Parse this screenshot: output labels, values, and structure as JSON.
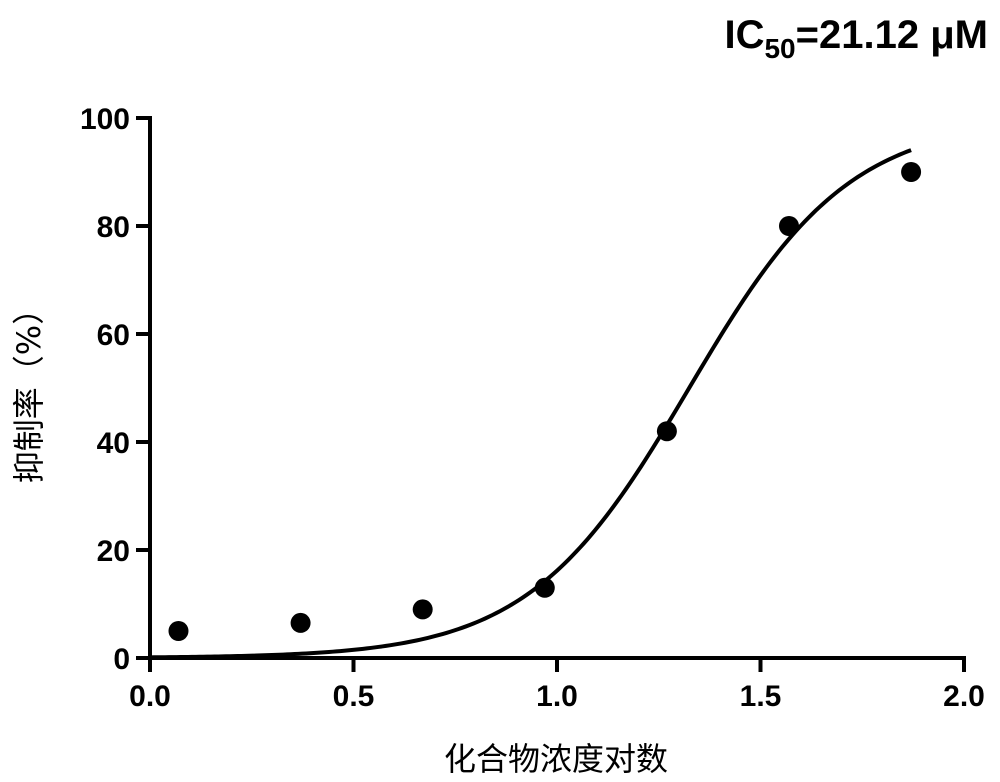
{
  "chart_data": {
    "type": "scatter",
    "title": {
      "prefix": "IC",
      "subscript": "50",
      "suffix": "=21.12 μM"
    },
    "xlabel": "化合物浓度对数",
    "ylabel": "抑制率（%）",
    "xlim": [
      0.0,
      2.0
    ],
    "ylim": [
      0,
      100
    ],
    "xticks": [
      0.0,
      0.5,
      1.0,
      1.5,
      2.0
    ],
    "xtick_labels": [
      "0.0",
      "0.5",
      "1.0",
      "1.5",
      "2.0"
    ],
    "yticks": [
      0,
      20,
      40,
      60,
      80,
      100
    ],
    "ytick_labels": [
      "0",
      "20",
      "40",
      "60",
      "80",
      "100"
    ],
    "grid": false,
    "points": {
      "x": [
        0.07,
        0.37,
        0.67,
        0.97,
        1.27,
        1.57,
        1.87
      ],
      "y": [
        5,
        6.5,
        9,
        13,
        42,
        80,
        90
      ]
    },
    "fit_curve": {
      "model": "sigmoidal dose-response",
      "bottom": 0,
      "top": 100,
      "log_ic50": 1.3247,
      "hill_slope": 2.2,
      "x_range": [
        0.0,
        1.87
      ]
    },
    "colors": {
      "points": "#000000",
      "curve": "#000000",
      "axes": "#000000"
    }
  }
}
